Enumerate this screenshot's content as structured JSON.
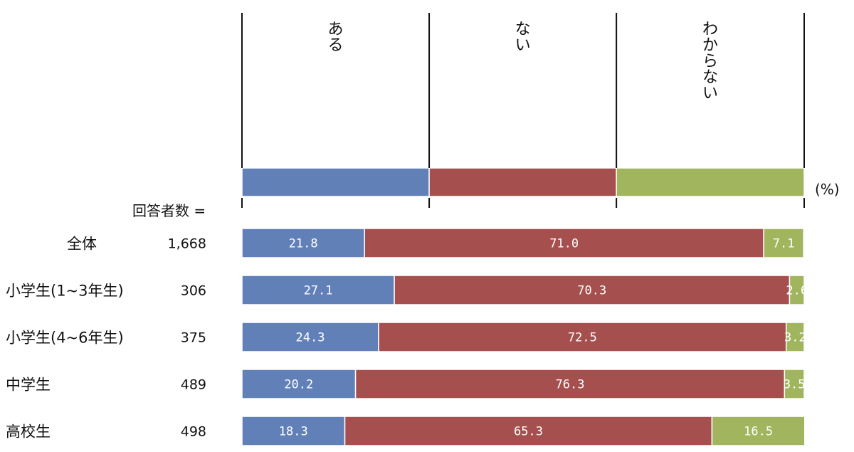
{
  "chart_data": {
    "type": "bar",
    "orientation": "horizontal",
    "stacked": true,
    "unit_label": "(%)",
    "respondents_label": "回答者数 =",
    "categories": [
      "全体",
      "小学生(1~3年生)",
      "小学生(4~6年生)",
      "中学生",
      "高校生"
    ],
    "respondents": [
      "1,668",
      "306",
      "375",
      "489",
      "498"
    ],
    "series": [
      {
        "name": "ある",
        "color": "#6280b8",
        "values": [
          21.8,
          27.1,
          24.3,
          20.2,
          18.3
        ],
        "labels": [
          "21.8",
          "27.1",
          "24.3",
          "20.2",
          "18.3"
        ]
      },
      {
        "name": "ない",
        "color": "#a54f4f",
        "values": [
          71.0,
          70.3,
          72.5,
          76.3,
          65.3
        ],
        "labels": [
          "71.0",
          "70.3",
          "72.5",
          "76.3",
          "65.3"
        ]
      },
      {
        "name": "わからない",
        "color": "#a1b55e",
        "values": [
          7.1,
          2.6,
          3.2,
          3.5,
          16.5
        ],
        "labels": [
          "7.1",
          "2.6",
          "3.2",
          "3.5",
          "16.5"
        ]
      }
    ],
    "legend": {
      "position": "top",
      "orientation": "vertical-text",
      "swatch_shares": [
        33.3,
        33.3,
        33.4
      ]
    },
    "xlim": [
      0,
      100
    ],
    "grid": false
  }
}
